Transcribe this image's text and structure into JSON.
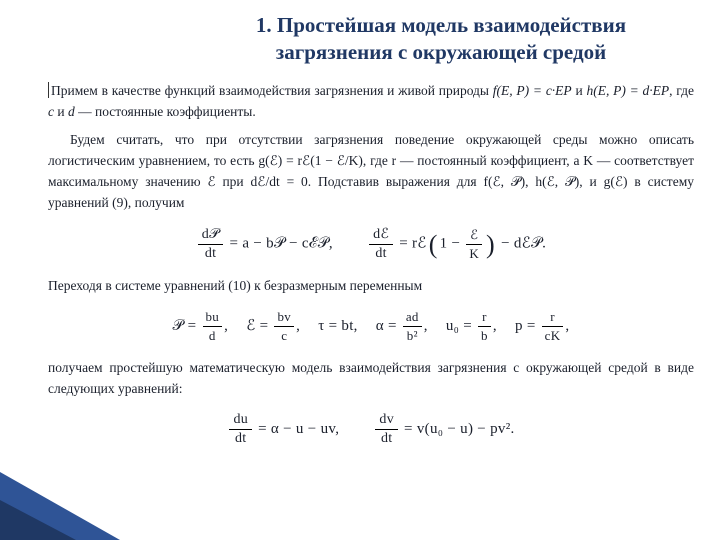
{
  "colors": {
    "title": "#203864",
    "text": "#1a1f2b",
    "triangle_outer": "#2f5496",
    "triangle_inner": "#1f3864",
    "background": "#ffffff"
  },
  "fonts": {
    "title_family": "Georgia, Times New Roman, serif",
    "title_weight": "700",
    "title_size_pt": 16,
    "body_family": "Times New Roman, Georgia, serif",
    "body_size_pt": 10,
    "math_script_family": "Brush Script MT, cursive"
  },
  "title_l1": "1. Простейшая модель взаимодействия",
  "title_l2": "загрязнения с окружающей средой",
  "para1_a": "Примем в качестве функций взаимодействия загрязнения и живой природы ",
  "para1_b": " и ",
  "para1_c": ", где ",
  "para1_d": " и ",
  "para1_e": " — постоянные коэффициенты.",
  "f_fn": "f(E, P) = c·EP",
  "h_fn": "h(E, P) = d·EP",
  "c_sym": "c",
  "d_sym": "d",
  "para2": "Будем считать, что при отсутствии загрязнения поведение окружающей среды можно описать логистическим уравнением, то есть g(ℰ) = rℰ(1 − ℰ/K), где r — постоянный коэффициент, а K — соответствует максимальному значению ℰ при dℰ/dt = 0. Подставив выражения для f(ℰ, 𝒫), h(ℰ, 𝒫), и g(ℰ) в систему уравнений (9), получим",
  "eq10": {
    "l_num": "d𝒫",
    "l_den": "dt",
    "l_rhs_a": " = a − b𝒫 − cℰ𝒫,",
    "r_num": "dℰ",
    "r_den": "dt",
    "r_mid_a": " = rℰ",
    "p_inner_num": "ℰ",
    "p_inner_den": "K",
    "p_inner_pre": "1 − ",
    "tail": " − dℰ𝒫."
  },
  "para3": "Переходя в системе уравнений (10) к безразмерным переменным",
  "subs": {
    "a_num": "bu",
    "a_den": "d",
    "a_pre": "𝒫 = ",
    "b_num": "bv",
    "b_den": "c",
    "b_pre": "ℰ = ",
    "c_txt": "τ = bt,",
    "d_num": "ad",
    "d_den": "b²",
    "d_pre": "α = ",
    "e_num": "r",
    "e_den": "b",
    "e_pre": "u₀ = ",
    "f_num": "r",
    "f_den": "cK",
    "f_pre": "p = "
  },
  "para4": "получаем простейшую математическую модель взаимодействия загрязнения с окружающей средой в виде следующих уравнений:",
  "eq_final": {
    "l_num": "du",
    "l_den": "dt",
    "l_rhs": " = α − u − uv,",
    "r_num": "dv",
    "r_den": "dt",
    "r_rhs": " = v(u₀ − u) − pv²."
  }
}
